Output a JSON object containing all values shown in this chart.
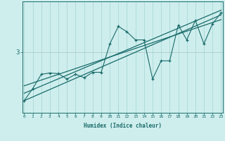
{
  "xlabel": "Humidex (Indice chaleur)",
  "background_color": "#ceeeed",
  "line_color": "#1a6b6b",
  "grid_color": "#aad8d8",
  "hline_color": "#b0c8c8",
  "ytick_label": "3",
  "ytick_value": 3.0,
  "xmin": 0,
  "xmax": 23,
  "ymin": 2.1,
  "ymax": 3.75,
  "scatter_x": [
    0,
    1,
    2,
    3,
    4,
    5,
    6,
    7,
    8,
    9,
    10,
    11,
    12,
    13,
    14,
    15,
    16,
    17,
    18,
    19,
    20,
    21,
    22,
    23
  ],
  "scatter_y": [
    2.28,
    2.46,
    2.67,
    2.69,
    2.68,
    2.6,
    2.67,
    2.62,
    2.7,
    2.7,
    3.12,
    3.38,
    3.3,
    3.18,
    3.18,
    2.6,
    2.87,
    2.87,
    3.4,
    3.18,
    3.47,
    3.12,
    3.42,
    3.58
  ],
  "trend1_x": [
    0,
    23
  ],
  "trend1_y": [
    2.28,
    3.55
  ],
  "trend2_x": [
    0,
    23
  ],
  "trend2_y": [
    2.5,
    3.48
  ],
  "trend3_x": [
    0,
    23
  ],
  "trend3_y": [
    2.39,
    3.62
  ]
}
